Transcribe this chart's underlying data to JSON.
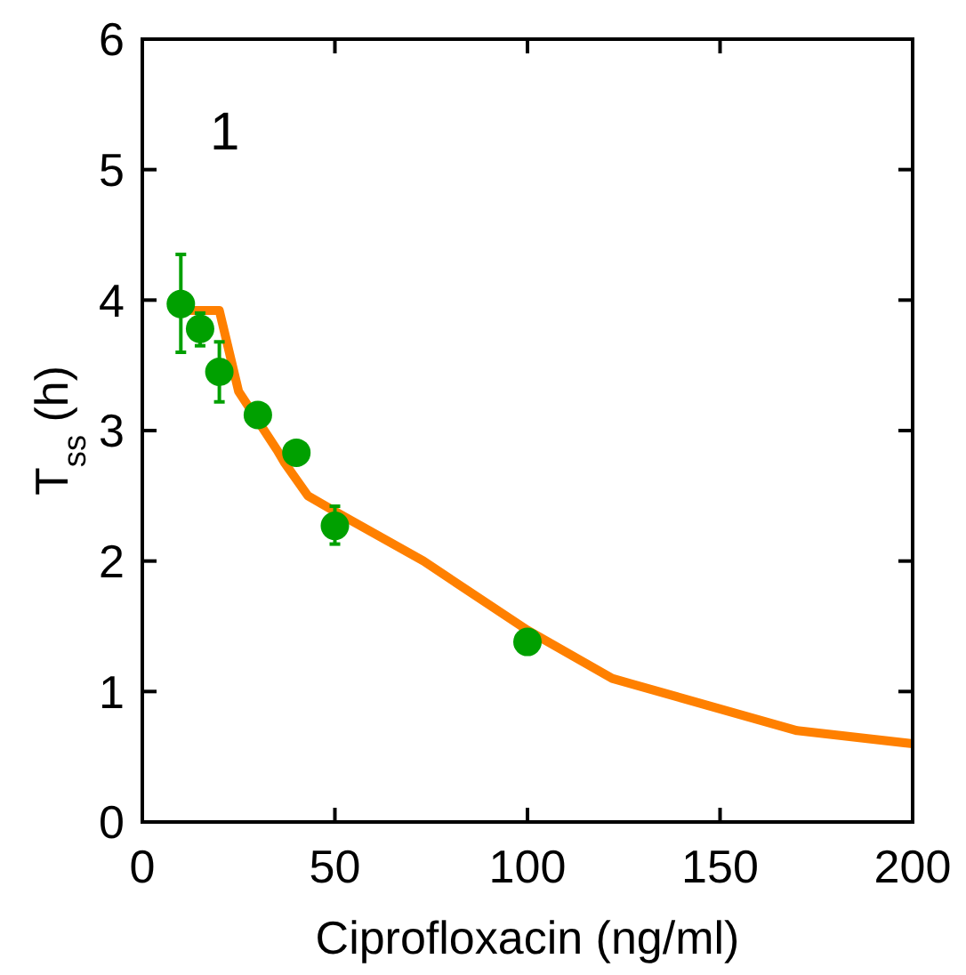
{
  "chart_data": {
    "type": "scatter",
    "xlabel": "Ciprofloxacin (ng/ml)",
    "ylabel": "T$_{ss}$ (h)",
    "annotations": [
      "1"
    ],
    "xlim": [
      0,
      200
    ],
    "ylim": [
      0,
      6
    ],
    "xticks": [
      0,
      50,
      100,
      150,
      200
    ],
    "yticks": [
      0,
      1,
      2,
      3,
      4,
      5,
      6
    ],
    "grid": false,
    "series": [
      {
        "type": "line",
        "color": "#ff8000",
        "x": [
          10,
          20,
          25,
          35,
          37,
          43,
          50,
          73,
          100,
          122,
          170,
          200
        ],
        "values": [
          3.92,
          3.92,
          3.3,
          2.85,
          2.75,
          2.5,
          2.38,
          2.0,
          1.47,
          1.1,
          0.7,
          0.6
        ],
        "line_style": "solid",
        "marker": "none"
      },
      {
        "color": "#00a000",
        "x": [
          10,
          15,
          20,
          30,
          40,
          50,
          100
        ],
        "values": [
          3.97,
          3.78,
          3.45,
          3.12,
          2.83,
          2.27,
          1.38
        ],
        "marker": "circle",
        "errors": [
          [
            3.6,
            4.35
          ],
          [
            3.65,
            3.9
          ],
          [
            3.22,
            3.68
          ],
          null,
          null,
          [
            2.13,
            2.42
          ],
          null
        ]
      }
    ]
  }
}
